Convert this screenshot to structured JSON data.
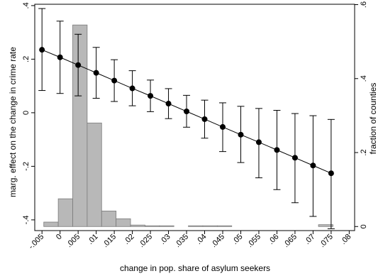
{
  "chart_data": {
    "type": "line",
    "xlabel": "change in pop. share of asylum seekers",
    "ylabel_left": "marg. effect on the change in crime rate",
    "ylabel_right": "fraction of counties",
    "xlim": [
      -0.007,
      0.0815
    ],
    "ylim_left": [
      -0.44,
      0.405
    ],
    "ylim_right": [
      -0.011,
      0.601
    ],
    "x_ticks": [
      -0.005,
      0,
      0.005,
      0.01,
      0.015,
      0.02,
      0.025,
      0.03,
      0.035,
      0.04,
      0.045,
      0.05,
      0.055,
      0.06,
      0.065,
      0.07,
      0.075,
      0.08
    ],
    "x_tick_labels": [
      "-.005",
      "0",
      ".005",
      ".01",
      ".015",
      ".02",
      ".025",
      ".03",
      ".035",
      ".04",
      ".045",
      ".05",
      ".055",
      ".06",
      ".065",
      ".07",
      ".075",
      ".08"
    ],
    "y_left_ticks": [
      -0.4,
      -0.2,
      0,
      0.2,
      0.4
    ],
    "y_left_tick_labels": [
      "-.4",
      "-.2",
      "0",
      ".2",
      ".4"
    ],
    "y_right_ticks": [
      0,
      0.2,
      0.4,
      0.6
    ],
    "y_right_tick_labels": [
      "0",
      ".2",
      ".4",
      ".6"
    ],
    "grid": false,
    "legend": "none",
    "line_color": "#000000",
    "bar_fill": "#b8b8b8",
    "bar_stroke": "#7a7a7a",
    "effect_series": {
      "x": [
        -0.005,
        0,
        0.005,
        0.01,
        0.015,
        0.02,
        0.025,
        0.03,
        0.035,
        0.04,
        0.045,
        0.05,
        0.055,
        0.06,
        0.065,
        0.07,
        0.075
      ],
      "y": [
        0.235,
        0.207,
        0.178,
        0.149,
        0.12,
        0.091,
        0.063,
        0.034,
        0.005,
        -0.024,
        -0.053,
        -0.082,
        -0.11,
        -0.139,
        -0.168,
        -0.197,
        -0.226
      ],
      "ci_low": [
        0.083,
        0.072,
        0.063,
        0.054,
        0.042,
        0.026,
        0.004,
        -0.022,
        -0.054,
        -0.095,
        -0.145,
        -0.186,
        -0.243,
        -0.287,
        -0.336,
        -0.387,
        -0.433
      ],
      "ci_high": [
        0.389,
        0.342,
        0.293,
        0.244,
        0.198,
        0.157,
        0.122,
        0.09,
        0.065,
        0.047,
        0.037,
        0.024,
        0.016,
        0.009,
        -0.003,
        -0.011,
        -0.025
      ]
    },
    "histogram": {
      "bin_width": 0.004,
      "bin_starts": [
        -0.0045,
        -0.0005,
        0.0035,
        0.0075,
        0.0115,
        0.0155,
        0.0195,
        0.0235,
        0.0275,
        0.0355,
        0.0395,
        0.0435,
        0.0715
      ],
      "fraction": [
        0.012,
        0.075,
        0.545,
        0.28,
        0.042,
        0.021,
        0.004,
        0.002,
        0.002,
        0.002,
        0.002,
        0.002,
        0.005
      ]
    }
  }
}
